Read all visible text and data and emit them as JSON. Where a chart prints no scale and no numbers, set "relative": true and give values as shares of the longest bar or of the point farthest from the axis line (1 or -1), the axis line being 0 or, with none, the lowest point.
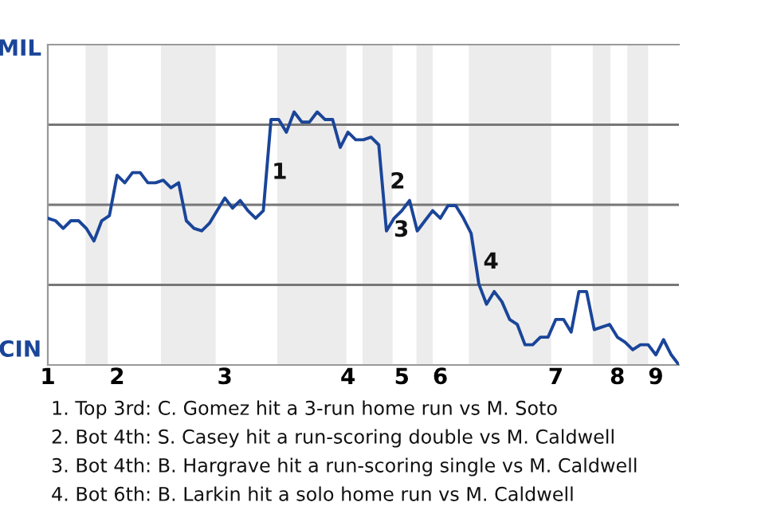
{
  "chart_data": {
    "type": "line",
    "relative": true,
    "categories": [
      "1",
      null,
      null,
      null,
      null,
      null,
      null,
      null,
      null,
      "2",
      null,
      null,
      null,
      null,
      null,
      null,
      null,
      null,
      null,
      null,
      null,
      null,
      null,
      "3",
      null,
      null,
      null,
      null,
      null,
      null,
      null,
      null,
      null,
      null,
      null,
      null,
      null,
      null,
      null,
      "4",
      null,
      null,
      null,
      null,
      null,
      null,
      "5",
      null,
      null,
      null,
      null,
      "6",
      null,
      null,
      null,
      null,
      null,
      null,
      null,
      null,
      null,
      null,
      null,
      null,
      null,
      null,
      "7",
      null,
      null,
      null,
      null,
      null,
      null,
      null,
      "8",
      null,
      null,
      null,
      null,
      "9",
      null,
      null,
      null
    ],
    "grid": "y",
    "legend": false,
    "marker": "none",
    "line_style": "solid",
    "series": [
      {
        "color": "#1a4599",
        "values": [
          0.58,
          0.57,
          0.54,
          0.57,
          0.57,
          0.54,
          0.49,
          0.57,
          0.59,
          0.75,
          0.72,
          0.76,
          0.76,
          0.72,
          0.72,
          0.73,
          0.7,
          0.72,
          0.57,
          0.54,
          0.53,
          0.56,
          0.61,
          0.66,
          0.62,
          0.65,
          0.61,
          0.58,
          0.61,
          0.97,
          0.97,
          0.92,
          1,
          0.96,
          0.96,
          1,
          0.97,
          0.97,
          0.86,
          0.92,
          0.89,
          0.89,
          0.9,
          0.87,
          0.53,
          0.58,
          0.61,
          0.65,
          0.53,
          0.57,
          0.61,
          0.58,
          0.63,
          0.63,
          0.58,
          0.52,
          0.32,
          0.24,
          0.29,
          0.25,
          0.18,
          0.16,
          0.08,
          0.08,
          0.11,
          0.11,
          0.18,
          0.18,
          0.13,
          0.29,
          0.29,
          0.14,
          0.15,
          0.16,
          0.11,
          0.09,
          0.06,
          0.08,
          0.08,
          0.04,
          0.1,
          0.04,
          0
        ],
        "name": null
      }
    ],
    "annotations": [
      "MIL",
      "CIN",
      "1",
      "2",
      "3",
      "4",
      "1. Top 3rd: C. Gomez hit a 3-run home run vs M. Soto",
      "2. Bot 4th: S. Casey hit a run-scoring double vs M. Caldwell",
      "3. Bot 4th: B. Hargrave hit a run-scoring single vs M. Caldwell",
      "4. Bot 6th: B. Larkin hit a solo home run vs M. Caldwell"
    ]
  }
}
